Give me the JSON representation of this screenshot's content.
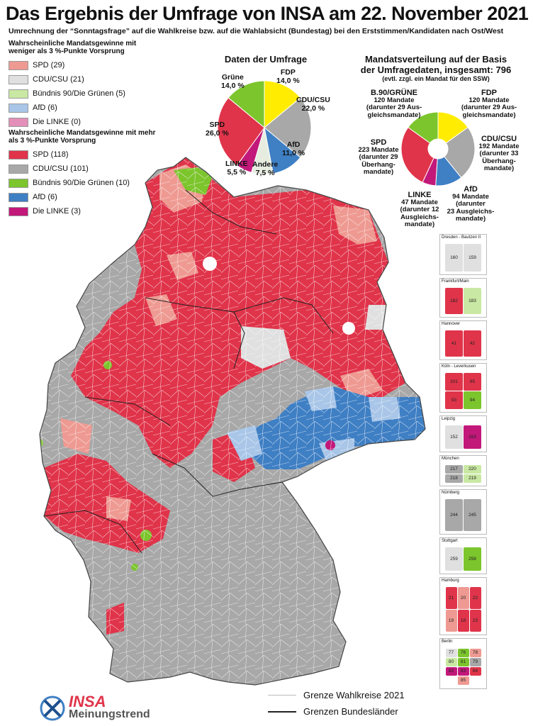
{
  "title": "Das Ergebnis der Umfrage von INSA am 22. November 2021",
  "subtitle": "Umrechnung der “Sonntagsfrage” auf die Wahlkreise bzw. auf die Wahlabsicht (Bundestag) bei den Erststimmen/Kandidaten nach Ost/West",
  "colors": {
    "spd_strong": "#e0344a",
    "spd_weak": "#ee9a92",
    "cdu_strong": "#a8a8a8",
    "cdu_weak": "#e0e0e0",
    "gruene_strong": "#7cc52d",
    "gruene_weak": "#c9e8a3",
    "afd_strong": "#3f7fc4",
    "afd_weak": "#a9c6e8",
    "linke_strong": "#c2187a",
    "linke_weak": "#e38fb9",
    "fdp": "#ffec00",
    "andere": "#e6ede0"
  },
  "legend": {
    "weak_heading": "Wahrscheinliche Mandatsgewinne mit weniger als 3 %-Punkte Vorsprung",
    "weak_items": [
      {
        "label": "SPD (29)",
        "color": "#ee9a92"
      },
      {
        "label": "CDU/CSU (21)",
        "color": "#e0e0e0"
      },
      {
        "label": "Bündnis 90/Die Grünen (5)",
        "color": "#c9e8a3"
      },
      {
        "label": "AfD (6)",
        "color": "#a9c6e8"
      },
      {
        "label": "Die LINKE (0)",
        "color": "#e38fb9"
      }
    ],
    "strong_heading": "Wahrscheinliche Mandatsgewinne mit mehr als 3 %-Punkte Vorsprung",
    "strong_items": [
      {
        "label": "SPD (118)",
        "color": "#e0344a"
      },
      {
        "label": "CDU/CSU (101)",
        "color": "#a8a8a8"
      },
      {
        "label": "Bündnis 90/Die Grünen (10)",
        "color": "#7cc52d"
      },
      {
        "label": "AfD (6)",
        "color": "#3f7fc4"
      },
      {
        "label": "Die LINKE (3)",
        "color": "#c2187a"
      }
    ]
  },
  "chart_data": [
    {
      "type": "pie",
      "title": "Daten der Umfrage",
      "slices": [
        {
          "name": "FDP",
          "label": "14,0 %",
          "value": 14.0,
          "color": "#ffec00"
        },
        {
          "name": "CDU/CSU",
          "label": "22,0 %",
          "value": 22.0,
          "color": "#a8a8a8"
        },
        {
          "name": "AfD",
          "label": "11,0 %",
          "value": 11.0,
          "color": "#3f7fc4"
        },
        {
          "name": "Andere",
          "label": "7,5 %",
          "value": 7.5,
          "color": "#e6ede0"
        },
        {
          "name": "LINKE",
          "label": "5,5 %",
          "value": 5.5,
          "color": "#c2187a"
        },
        {
          "name": "SPD",
          "label": "26,0 %",
          "value": 26.0,
          "color": "#e0344a"
        },
        {
          "name": "Grüne",
          "label": "14,0 %",
          "value": 14.0,
          "color": "#7cc52d"
        }
      ]
    },
    {
      "type": "pie",
      "title": "Mandatsverteilung auf der Basis der Umfragedaten, insgesamt: 796",
      "title_line1": "Mandatsverteilung auf der Basis",
      "title_line2": "der Umfragedaten, insgesamt: 796",
      "note": "(evtl. zzgl. ein Mandat für den SSW)",
      "slices": [
        {
          "name": "FDP",
          "value": 120,
          "color": "#ffec00"
        },
        {
          "name": "CDU/CSU",
          "value": 192,
          "color": "#a8a8a8"
        },
        {
          "name": "AfD",
          "value": 94,
          "color": "#3f7fc4"
        },
        {
          "name": "LINKE",
          "value": 47,
          "color": "#c2187a"
        },
        {
          "name": "SPD",
          "value": 223,
          "color": "#e0344a"
        },
        {
          "name": "B.90/GRÜNE",
          "value": 120,
          "color": "#7cc52d"
        }
      ],
      "labels": {
        "gruene": [
          "B.90/GRÜNE",
          "120 Mandate",
          "(darunter 29 Aus-",
          "gleichsmandate)"
        ],
        "fdp": [
          "FDP",
          "120 Mandate",
          "(darunter 29 Aus-",
          "gleichsmandate)"
        ],
        "cdu": [
          "CDU/CSU",
          "192 Mandate",
          "(darunter 33",
          "Überhang-",
          "mandate)"
        ],
        "spd": [
          "SPD",
          "223 Mandate",
          "(darunter 29",
          "Überhang-",
          "mandate)"
        ],
        "linke": [
          "LINKE",
          "47 Mandate",
          "(darunter 12",
          "Ausgleichs-",
          "mandate)"
        ],
        "afd": [
          "AfD",
          "94 Mandate",
          "(darunter",
          "23 Ausgleichs-",
          "mandate)"
        ]
      }
    }
  ],
  "insets": [
    {
      "title": "Dresden - Bautzen II",
      "numbers": [
        "160",
        "159"
      ]
    },
    {
      "title": "Frankfurt/Main",
      "numbers": [
        "182",
        "183"
      ]
    },
    {
      "title": "Hannover",
      "numbers": [
        "41",
        "42"
      ]
    },
    {
      "title": "Köln - Leverkusen",
      "numbers": [
        "101",
        "95",
        "93",
        "94"
      ]
    },
    {
      "title": "Leipzig",
      "numbers": [
        "152",
        "153"
      ]
    },
    {
      "title": "München",
      "numbers": [
        "217",
        "220",
        "218",
        "219"
      ]
    },
    {
      "title": "Nürnberg",
      "numbers": [
        "244",
        "245"
      ]
    },
    {
      "title": "Stuttgart",
      "numbers": [
        "259",
        "258"
      ]
    },
    {
      "title": "Hamburg",
      "numbers": [
        "21",
        "20",
        "22",
        "19",
        "18",
        "23"
      ]
    },
    {
      "title": "Berlin",
      "numbers": [
        "77",
        "76",
        "78",
        "80",
        "81",
        "79",
        "82",
        "83",
        "84",
        "85"
      ]
    }
  ],
  "map_legend": {
    "line1": "Grenze Wahlkreise 2021",
    "line2": "Grenzen Bundesländer"
  },
  "logo": {
    "brand": "INSA",
    "sub": "Meinungstrend"
  }
}
